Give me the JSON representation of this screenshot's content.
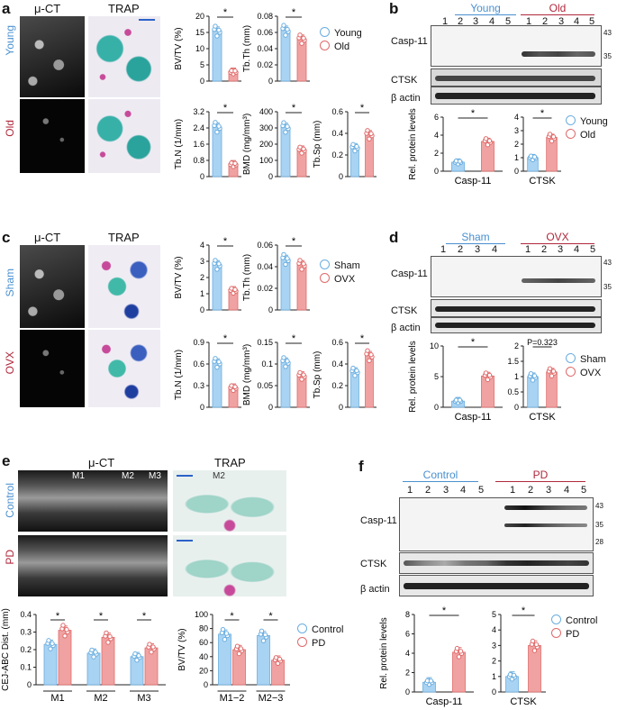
{
  "colors": {
    "young": "#6aaee0",
    "old": "#e06a6a",
    "young_fill": "#a9d3f2",
    "old_fill": "#f0a2a2",
    "blue_text": "#4a90d0",
    "red_text": "#b0283c"
  },
  "panel_a": {
    "letter": "a",
    "ct_header": "μ-CT",
    "trap_header": "TRAP",
    "row1": "Young",
    "row2": "Old",
    "legend": [
      "Young",
      "Old"
    ]
  },
  "panel_b": {
    "letter": "b",
    "group1": "Young",
    "group2": "Old",
    "lanes1": [
      "1",
      "2",
      "3",
      "4",
      "5"
    ],
    "lanes2": [
      "1",
      "2",
      "3",
      "4",
      "5"
    ],
    "blots": [
      "Casp-11",
      "CTSK",
      "β actin"
    ],
    "mw": [
      "43",
      "35"
    ],
    "legend": [
      "Young",
      "Old"
    ]
  },
  "panel_c": {
    "letter": "c",
    "ct_header": "μ-CT",
    "trap_header": "TRAP",
    "row1": "Sham",
    "row2": "OVX",
    "legend": [
      "Sham",
      "OVX"
    ]
  },
  "panel_d": {
    "letter": "d",
    "group1": "Sham",
    "group2": "OVX",
    "lanes1": [
      "1",
      "2",
      "3",
      "4"
    ],
    "lanes2": [
      "1",
      "2",
      "3",
      "4",
      "5"
    ],
    "blots": [
      "Casp-11",
      "CTSK",
      "β actin"
    ],
    "mw": [
      "43",
      "35"
    ],
    "legend": [
      "Sham",
      "OVX"
    ]
  },
  "panel_e": {
    "letter": "e",
    "ct_header": "μ-CT",
    "trap_header": "TRAP",
    "row1": "Control",
    "row2": "PD",
    "teeth": [
      "M1",
      "M2",
      "M3"
    ],
    "trap_tooth": "M2",
    "legend": [
      "Control",
      "PD"
    ]
  },
  "panel_f": {
    "letter": "f",
    "group1": "Control",
    "group2": "PD",
    "lanes1": [
      "1",
      "2",
      "3",
      "4",
      "5"
    ],
    "lanes2": [
      "1",
      "2",
      "3",
      "4",
      "5"
    ],
    "blots": [
      "Casp-11",
      "CTSK",
      "β actin"
    ],
    "mw": [
      "43",
      "35",
      "28"
    ],
    "legend": [
      "Control",
      "PD"
    ]
  },
  "chart_data": [
    {
      "id": "a-bvtv",
      "type": "bar",
      "categories": [
        "Young",
        "Old"
      ],
      "values": [
        15.5,
        2.8
      ],
      "ylabel": "BV/TV (%)",
      "ylim": [
        0,
        20
      ],
      "yticks": [
        0,
        5,
        10,
        15,
        20
      ],
      "sig": "*"
    },
    {
      "id": "a-tbth",
      "type": "bar",
      "categories": [
        "Young",
        "Old"
      ],
      "values": [
        0.063,
        0.052
      ],
      "ylabel": "Tb.Th (mm)",
      "ylim": [
        0,
        0.08
      ],
      "yticks": [
        0,
        0.02,
        0.04,
        0.06,
        0.08
      ],
      "sig": "*"
    },
    {
      "id": "a-tbn",
      "type": "bar",
      "categories": [
        "Young",
        "Old"
      ],
      "values": [
        2.45,
        0.6
      ],
      "ylabel": "Tb.N (1/mm)",
      "ylim": [
        0,
        3.2
      ],
      "yticks": [
        0,
        0.8,
        1.6,
        2.4,
        3.2
      ],
      "sig": "*"
    },
    {
      "id": "a-bmd",
      "type": "bar",
      "categories": [
        "Young",
        "Old"
      ],
      "values": [
        305,
        165
      ],
      "ylabel": "BMD (mg/mm³)",
      "ylim": [
        0,
        400
      ],
      "yticks": [
        0,
        100,
        200,
        300,
        400
      ],
      "sig": "*"
    },
    {
      "id": "a-tbsp",
      "type": "bar",
      "categories": [
        "Young",
        "Old"
      ],
      "values": [
        0.27,
        0.39
      ],
      "ylabel": "Tb.Sp (mm)",
      "ylim": [
        0,
        0.6
      ],
      "yticks": [
        0,
        0.2,
        0.4,
        0.6
      ],
      "sig": "*"
    },
    {
      "id": "b-casp",
      "type": "bar",
      "categories": [
        "Young",
        "Old"
      ],
      "values": [
        1.0,
        3.3
      ],
      "ylabel": "Rel. protein levels",
      "ylim": [
        0,
        6
      ],
      "yticks": [
        0,
        2,
        4,
        6
      ],
      "xlabel": "Casp-11",
      "sig": "*"
    },
    {
      "id": "b-ctsk",
      "type": "bar",
      "categories": [
        "Young",
        "Old"
      ],
      "values": [
        1.0,
        2.5
      ],
      "ylabel": "",
      "ylim": [
        0,
        4
      ],
      "yticks": [
        0,
        1,
        2,
        3,
        4
      ],
      "xlabel": "CTSK",
      "sig": "*"
    },
    {
      "id": "c-bvtv",
      "type": "bar",
      "categories": [
        "Sham",
        "OVX"
      ],
      "values": [
        2.8,
        1.2
      ],
      "ylabel": "BV/TV (%)",
      "ylim": [
        0,
        4
      ],
      "yticks": [
        0,
        1,
        2,
        3,
        4
      ],
      "sig": "*"
    },
    {
      "id": "c-tbth",
      "type": "bar",
      "categories": [
        "Sham",
        "OVX"
      ],
      "values": [
        0.047,
        0.042
      ],
      "ylabel": "Tb.Th (mm)",
      "ylim": [
        0,
        0.06
      ],
      "yticks": [
        0,
        0.02,
        0.04,
        0.06
      ],
      "sig": "*"
    },
    {
      "id": "c-tbn",
      "type": "bar",
      "categories": [
        "Sham",
        "OVX"
      ],
      "values": [
        0.62,
        0.27
      ],
      "ylabel": "Tb.N (1/mm)",
      "ylim": [
        0,
        0.9
      ],
      "yticks": [
        0,
        0.3,
        0.6,
        0.9
      ],
      "sig": "*"
    },
    {
      "id": "c-bmd",
      "type": "bar",
      "categories": [
        "Sham",
        "OVX"
      ],
      "values": [
        0.105,
        0.073
      ],
      "ylabel": "BMD (mg/mm³)",
      "ylim": [
        0,
        0.15
      ],
      "yticks": [
        0,
        0.05,
        0.1,
        0.15
      ],
      "sig": "*"
    },
    {
      "id": "c-tbsp",
      "type": "bar",
      "categories": [
        "Sham",
        "OVX"
      ],
      "values": [
        0.33,
        0.48
      ],
      "ylabel": "Tb.Sp (mm)",
      "ylim": [
        0,
        0.6
      ],
      "yticks": [
        0,
        0.2,
        0.4,
        0.6
      ],
      "sig": "*"
    },
    {
      "id": "d-casp",
      "type": "bar",
      "categories": [
        "Sham",
        "OVX"
      ],
      "values": [
        1.0,
        5.1
      ],
      "ylabel": "Rel. protein levels",
      "ylim": [
        0,
        10
      ],
      "yticks": [
        0,
        5,
        10
      ],
      "xlabel": "Casp-11",
      "sig": "*"
    },
    {
      "id": "d-ctsk",
      "type": "bar",
      "categories": [
        "Sham",
        "OVX"
      ],
      "values": [
        1.0,
        1.15
      ],
      "ylabel": "",
      "ylim": [
        0,
        2
      ],
      "yticks": [
        0,
        0.5,
        1,
        1.5,
        2
      ],
      "xlabel": "CTSK",
      "sig": "P=0.323"
    },
    {
      "id": "e-cej",
      "type": "bar",
      "groups": [
        "M1",
        "M2",
        "M3"
      ],
      "series": [
        {
          "name": "Control",
          "values": [
            0.23,
            0.18,
            0.16
          ]
        },
        {
          "name": "PD",
          "values": [
            0.31,
            0.27,
            0.21
          ]
        }
      ],
      "ylabel": "CEJ-ABC Dist. (mm)",
      "ylim": [
        0,
        0.4
      ],
      "yticks": [
        0,
        0.1,
        0.2,
        0.3,
        0.4
      ],
      "sig": "*"
    },
    {
      "id": "e-bvtv",
      "type": "bar",
      "groups": [
        "M1−2",
        "M2−3"
      ],
      "series": [
        {
          "name": "Control",
          "values": [
            72,
            70
          ]
        },
        {
          "name": "PD",
          "values": [
            50,
            35
          ]
        }
      ],
      "ylabel": "BV/TV (%)",
      "ylim": [
        0,
        100
      ],
      "yticks": [
        0,
        20,
        40,
        60,
        80,
        100
      ],
      "sig": "*"
    },
    {
      "id": "f-casp",
      "type": "bar",
      "categories": [
        "Control",
        "PD"
      ],
      "values": [
        1.0,
        4.1
      ],
      "ylabel": "Rel. protein levels",
      "ylim": [
        0,
        8
      ],
      "yticks": [
        0,
        2,
        4,
        6,
        8
      ],
      "xlabel": "Casp-11",
      "sig": "*"
    },
    {
      "id": "f-ctsk",
      "type": "bar",
      "categories": [
        "Control",
        "PD"
      ],
      "values": [
        1.0,
        3.0
      ],
      "ylabel": "",
      "ylim": [
        0,
        5
      ],
      "yticks": [
        0,
        1,
        2,
        3,
        4,
        5
      ],
      "xlabel": "CTSK",
      "sig": "*"
    }
  ]
}
